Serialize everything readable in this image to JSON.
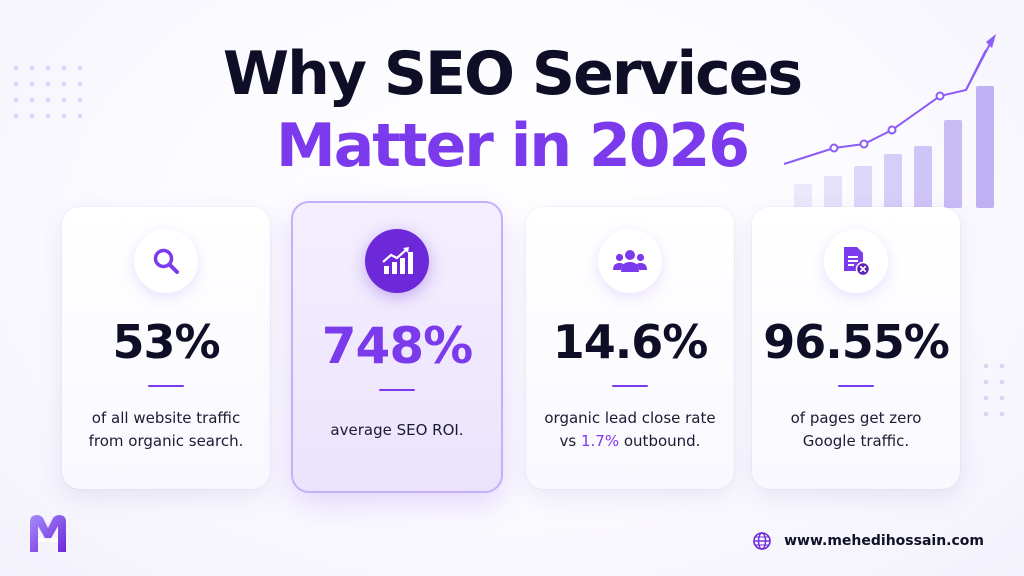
{
  "title": {
    "line1": "Why SEO Services",
    "line2": "Matter in 2026"
  },
  "colors": {
    "accent": "#7c3aed",
    "dark": "#0e0e26"
  },
  "cards": [
    {
      "icon": "search-icon",
      "stat": "53%",
      "desc_line1": "of all website traffic",
      "desc_line2": "from organic search."
    },
    {
      "icon": "chart-growth-icon",
      "stat": "748%",
      "desc_line1": "average SEO ROI."
    },
    {
      "icon": "users-icon",
      "stat": "14.6%",
      "desc_line1": "organic lead close rate",
      "desc_pre": "vs ",
      "desc_hl": "1.7%",
      "desc_post": " outbound."
    },
    {
      "icon": "document-cancel-icon",
      "stat": "96.55%",
      "desc_line1": "of pages get zero",
      "desc_line2": "Google traffic."
    }
  ],
  "footer": {
    "logo": "mh-logo",
    "website_icon": "globe-icon",
    "website": "www.mehedihossain.com"
  }
}
